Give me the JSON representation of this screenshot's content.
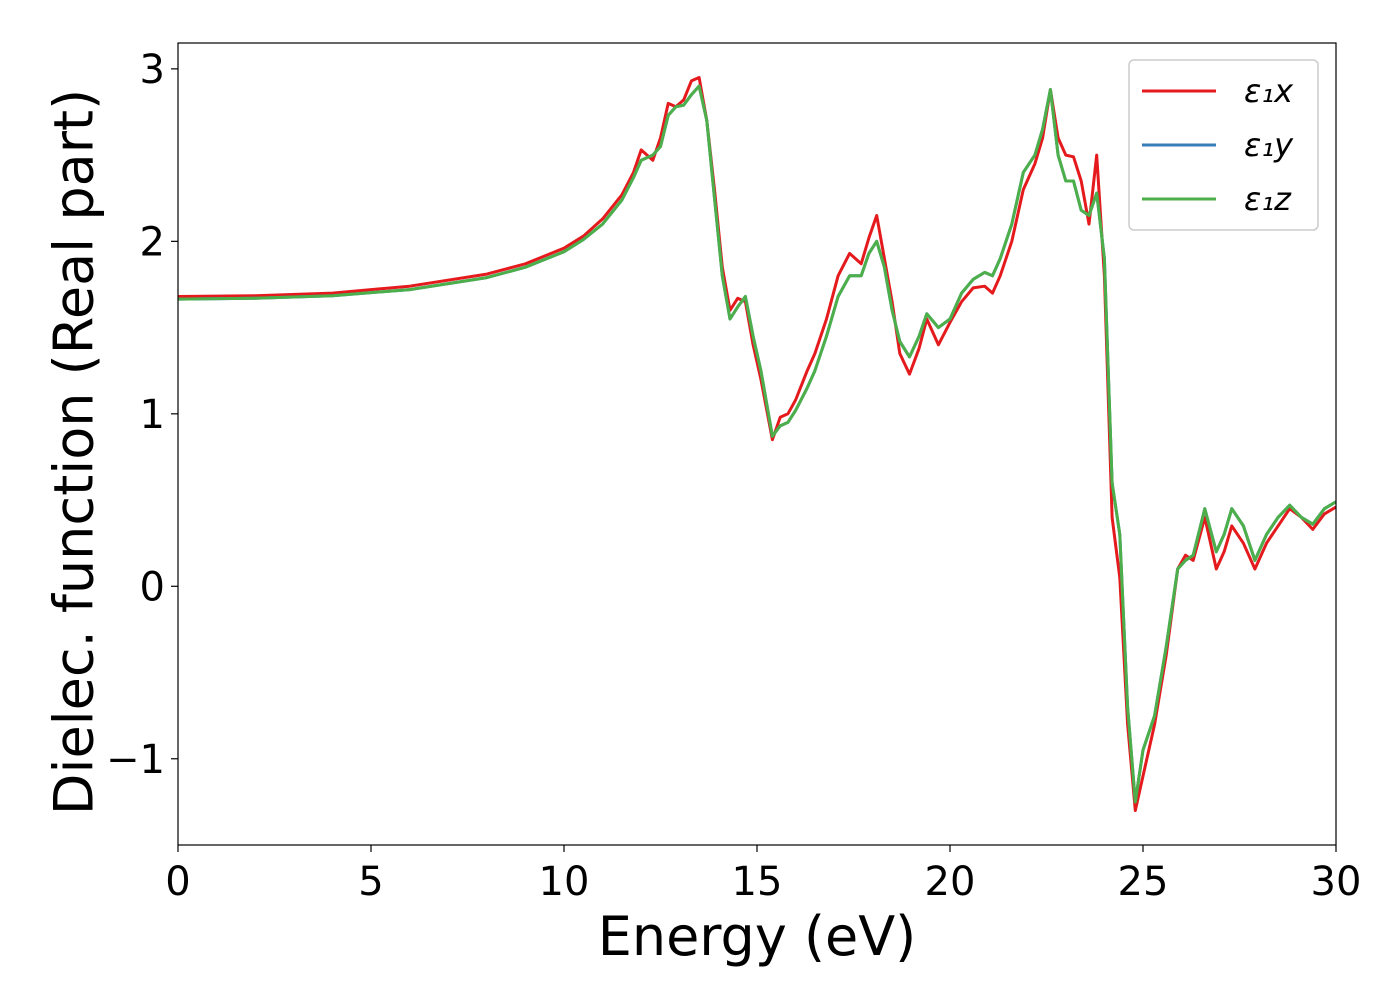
{
  "chart_data": {
    "type": "line",
    "title": "",
    "xlabel": "Energy (eV)",
    "ylabel": "Dielec. function (Real part)",
    "xlim": [
      0,
      30
    ],
    "ylim": [
      -1.5,
      3.15
    ],
    "xticks": [
      0,
      5,
      10,
      15,
      20,
      25,
      30
    ],
    "xtick_labels": [
      "0",
      "5",
      "10",
      "15",
      "20",
      "25",
      "30"
    ],
    "yticks": [
      -1,
      0,
      1,
      2,
      3
    ],
    "ytick_labels": [
      "−1",
      "0",
      "1",
      "2",
      "3"
    ],
    "grid": false,
    "legend_position": "top-right",
    "series": [
      {
        "name": "ε₁x",
        "color": "#e41a1c",
        "x": [
          0,
          2,
          4,
          6,
          8,
          9,
          10,
          10.5,
          11,
          11.5,
          11.8,
          12.0,
          12.3,
          12.5,
          12.7,
          12.9,
          13.1,
          13.3,
          13.5,
          13.7,
          13.9,
          14.1,
          14.3,
          14.5,
          14.7,
          14.9,
          15.1,
          15.4,
          15.6,
          15.8,
          16.0,
          16.3,
          16.5,
          16.8,
          17.1,
          17.4,
          17.7,
          17.9,
          18.1,
          18.3,
          18.5,
          18.7,
          18.95,
          19.2,
          19.4,
          19.7,
          20.0,
          20.3,
          20.6,
          20.9,
          21.1,
          21.3,
          21.6,
          21.9,
          22.2,
          22.4,
          22.6,
          22.8,
          23.0,
          23.2,
          23.4,
          23.6,
          23.8,
          24.0,
          24.2,
          24.4,
          24.6,
          24.8,
          25.0,
          25.3,
          25.6,
          25.9,
          26.1,
          26.3,
          26.6,
          26.9,
          27.1,
          27.3,
          27.6,
          27.9,
          28.2,
          28.5,
          28.8,
          29.1,
          29.4,
          29.7,
          30.0
        ],
        "y": [
          1.68,
          1.685,
          1.7,
          1.74,
          1.81,
          1.87,
          1.96,
          2.03,
          2.13,
          2.27,
          2.4,
          2.53,
          2.47,
          2.6,
          2.8,
          2.78,
          2.82,
          2.93,
          2.95,
          2.7,
          2.3,
          1.85,
          1.6,
          1.67,
          1.65,
          1.4,
          1.2,
          0.85,
          0.98,
          1.0,
          1.08,
          1.25,
          1.35,
          1.55,
          1.8,
          1.93,
          1.87,
          2.02,
          2.15,
          1.9,
          1.65,
          1.35,
          1.23,
          1.38,
          1.55,
          1.4,
          1.53,
          1.65,
          1.73,
          1.74,
          1.7,
          1.8,
          2.0,
          2.3,
          2.45,
          2.6,
          2.88,
          2.6,
          2.5,
          2.49,
          2.35,
          2.1,
          2.5,
          1.8,
          0.4,
          0.05,
          -0.8,
          -1.3,
          -1.1,
          -0.8,
          -0.4,
          0.1,
          0.18,
          0.15,
          0.4,
          0.1,
          0.2,
          0.35,
          0.25,
          0.1,
          0.25,
          0.35,
          0.45,
          0.4,
          0.33,
          0.42,
          0.46
        ]
      },
      {
        "name": "ε₁y",
        "color": "#377eb8",
        "x": [
          0,
          2,
          4,
          6,
          8,
          9,
          10,
          10.5,
          11,
          11.5,
          11.8,
          12.0,
          12.3,
          12.5,
          12.7,
          12.9,
          13.1,
          13.3,
          13.5,
          13.7,
          13.9,
          14.1,
          14.3,
          14.5,
          14.7,
          14.9,
          15.1,
          15.4,
          15.6,
          15.8,
          16.0,
          16.3,
          16.5,
          16.8,
          17.1,
          17.4,
          17.7,
          17.9,
          18.1,
          18.3,
          18.5,
          18.7,
          18.95,
          19.2,
          19.4,
          19.7,
          20.0,
          20.3,
          20.6,
          20.9,
          21.1,
          21.3,
          21.6,
          21.9,
          22.2,
          22.4,
          22.6,
          22.8,
          23.0,
          23.2,
          23.4,
          23.6,
          23.8,
          24.0,
          24.2,
          24.4,
          24.6,
          24.8,
          25.0,
          25.3,
          25.6,
          25.9,
          26.1,
          26.3,
          26.6,
          26.9,
          27.1,
          27.3,
          27.6,
          27.9,
          28.2,
          28.5,
          28.8,
          29.1,
          29.4,
          29.7,
          30.0
        ],
        "y": [
          1.665,
          1.67,
          1.685,
          1.72,
          1.79,
          1.85,
          1.94,
          2.01,
          2.1,
          2.24,
          2.37,
          2.47,
          2.5,
          2.55,
          2.73,
          2.78,
          2.79,
          2.85,
          2.9,
          2.7,
          2.25,
          1.8,
          1.55,
          1.62,
          1.68,
          1.45,
          1.25,
          0.87,
          0.93,
          0.95,
          1.02,
          1.15,
          1.25,
          1.45,
          1.68,
          1.8,
          1.8,
          1.93,
          2.0,
          1.85,
          1.6,
          1.42,
          1.33,
          1.45,
          1.58,
          1.5,
          1.55,
          1.7,
          1.78,
          1.82,
          1.8,
          1.9,
          2.1,
          2.4,
          2.5,
          2.65,
          2.88,
          2.5,
          2.35,
          2.35,
          2.18,
          2.15,
          2.28,
          1.9,
          0.6,
          0.3,
          -0.7,
          -1.25,
          -0.95,
          -0.75,
          -0.35,
          0.1,
          0.15,
          0.18,
          0.45,
          0.2,
          0.3,
          0.45,
          0.35,
          0.15,
          0.3,
          0.4,
          0.47,
          0.4,
          0.36,
          0.45,
          0.49
        ]
      },
      {
        "name": "ε₁z",
        "color": "#4daf4a",
        "x": [
          0,
          2,
          4,
          6,
          8,
          9,
          10,
          10.5,
          11,
          11.5,
          11.8,
          12.0,
          12.3,
          12.5,
          12.7,
          12.9,
          13.1,
          13.3,
          13.5,
          13.7,
          13.9,
          14.1,
          14.3,
          14.5,
          14.7,
          14.9,
          15.1,
          15.4,
          15.6,
          15.8,
          16.0,
          16.3,
          16.5,
          16.8,
          17.1,
          17.4,
          17.7,
          17.9,
          18.1,
          18.3,
          18.5,
          18.7,
          18.95,
          19.2,
          19.4,
          19.7,
          20.0,
          20.3,
          20.6,
          20.9,
          21.1,
          21.3,
          21.6,
          21.9,
          22.2,
          22.4,
          22.6,
          22.8,
          23.0,
          23.2,
          23.4,
          23.6,
          23.8,
          24.0,
          24.2,
          24.4,
          24.6,
          24.8,
          25.0,
          25.3,
          25.6,
          25.9,
          26.1,
          26.3,
          26.6,
          26.9,
          27.1,
          27.3,
          27.6,
          27.9,
          28.2,
          28.5,
          28.8,
          29.1,
          29.4,
          29.7,
          30.0
        ],
        "y": [
          1.665,
          1.67,
          1.685,
          1.72,
          1.79,
          1.85,
          1.94,
          2.01,
          2.1,
          2.24,
          2.37,
          2.47,
          2.5,
          2.55,
          2.73,
          2.78,
          2.79,
          2.85,
          2.9,
          2.7,
          2.25,
          1.8,
          1.55,
          1.62,
          1.68,
          1.45,
          1.25,
          0.87,
          0.93,
          0.95,
          1.02,
          1.15,
          1.25,
          1.45,
          1.68,
          1.8,
          1.8,
          1.93,
          2.0,
          1.85,
          1.6,
          1.42,
          1.33,
          1.45,
          1.58,
          1.5,
          1.55,
          1.7,
          1.78,
          1.82,
          1.8,
          1.9,
          2.1,
          2.4,
          2.5,
          2.65,
          2.88,
          2.5,
          2.35,
          2.35,
          2.18,
          2.15,
          2.28,
          1.9,
          0.6,
          0.3,
          -0.7,
          -1.25,
          -0.95,
          -0.75,
          -0.35,
          0.1,
          0.15,
          0.18,
          0.45,
          0.2,
          0.3,
          0.45,
          0.35,
          0.15,
          0.3,
          0.4,
          0.47,
          0.4,
          0.36,
          0.45,
          0.49
        ]
      }
    ]
  }
}
